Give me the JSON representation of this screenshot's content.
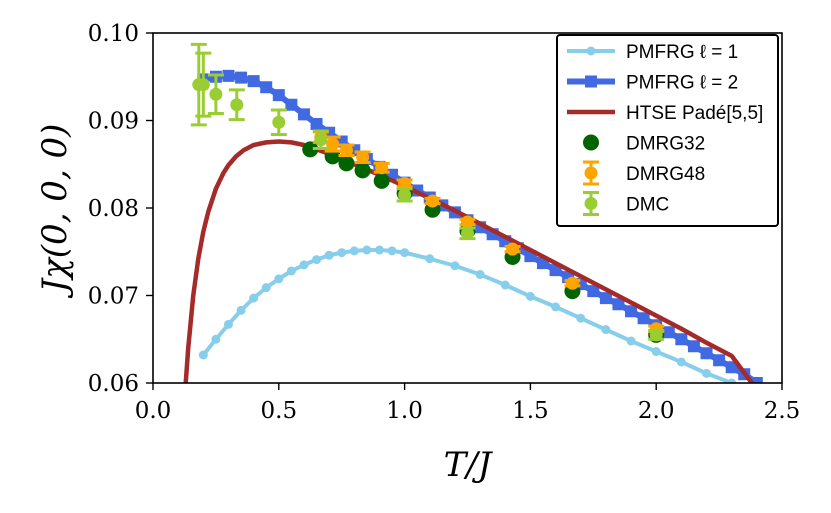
{
  "chart_data": {
    "type": "line",
    "title": "",
    "xlabel": "T/J",
    "ylabel": "Jχ(0, 0, 0)",
    "xlim": [
      0.0,
      2.5
    ],
    "ylim": [
      0.06,
      0.1
    ],
    "xticks": [
      "0.0",
      "0.5",
      "1.0",
      "1.5",
      "2.0",
      "2.5"
    ],
    "xtick_values": [
      0.0,
      0.5,
      1.0,
      1.5,
      2.0,
      2.5
    ],
    "yticks": [
      "0.06",
      "0.07",
      "0.08",
      "0.09",
      "0.10"
    ],
    "ytick_values": [
      0.06,
      0.07,
      0.08,
      0.09,
      0.1
    ],
    "grid": false,
    "legend_position": "top-right",
    "series": [
      {
        "name": "PMFRG ℓ = 1",
        "legend_label": "PMFRG ℓ = 1",
        "style": "line-circle",
        "color": "#87ceeb",
        "x": [
          0.2,
          0.25,
          0.3,
          0.35,
          0.4,
          0.45,
          0.5,
          0.55,
          0.6,
          0.65,
          0.7,
          0.75,
          0.8,
          0.85,
          0.9,
          0.95,
          1.0,
          1.1,
          1.2,
          1.3,
          1.4,
          1.5,
          1.6,
          1.7,
          1.8,
          1.9,
          2.0,
          2.1,
          2.2,
          2.3
        ],
        "y": [
          0.0632,
          0.065,
          0.0667,
          0.0683,
          0.0697,
          0.0709,
          0.0719,
          0.0728,
          0.0735,
          0.0741,
          0.0746,
          0.0749,
          0.0751,
          0.0752,
          0.0752,
          0.0751,
          0.0749,
          0.0742,
          0.0734,
          0.0724,
          0.0712,
          0.0699,
          0.0687,
          0.0674,
          0.0661,
          0.0648,
          0.0636,
          0.0624,
          0.0611,
          0.06
        ]
      },
      {
        "name": "PMFRG ℓ = 2",
        "legend_label": "PMFRG ℓ = 2",
        "style": "line-square",
        "color": "#4169e1",
        "x": [
          0.2,
          0.25,
          0.3,
          0.35,
          0.4,
          0.45,
          0.5,
          0.55,
          0.6,
          0.65,
          0.7,
          0.75,
          0.8,
          0.85,
          0.9,
          0.95,
          1.0,
          1.05,
          1.1,
          1.15,
          1.2,
          1.25,
          1.3,
          1.35,
          1.4,
          1.45,
          1.5,
          1.55,
          1.6,
          1.65,
          1.7,
          1.75,
          1.8,
          1.85,
          1.9,
          1.95,
          2.0,
          2.05,
          2.1,
          2.15,
          2.2,
          2.25,
          2.3,
          2.35,
          2.4
        ],
        "y": [
          0.0947,
          0.095,
          0.0951,
          0.0949,
          0.0945,
          0.0938,
          0.0929,
          0.0918,
          0.0907,
          0.0896,
          0.0886,
          0.0876,
          0.0866,
          0.0856,
          0.0847,
          0.0838,
          0.0829,
          0.082,
          0.0812,
          0.0803,
          0.0795,
          0.0786,
          0.0778,
          0.077,
          0.0762,
          0.0754,
          0.0745,
          0.0737,
          0.0729,
          0.0721,
          0.0713,
          0.0705,
          0.0697,
          0.069,
          0.0682,
          0.0674,
          0.0666,
          0.0658,
          0.065,
          0.0642,
          0.0634,
          0.0626,
          0.0618,
          0.061,
          0.06
        ]
      },
      {
        "name": "HTSE Padé[5,5]",
        "legend_label": "HTSE Padé[5,5]",
        "style": "line",
        "color": "#a52a2a",
        "x": [
          0.13,
          0.14,
          0.15,
          0.16,
          0.18,
          0.2,
          0.22,
          0.25,
          0.28,
          0.3,
          0.33,
          0.36,
          0.4,
          0.45,
          0.5,
          0.55,
          0.6,
          0.65,
          0.7,
          0.8,
          0.9,
          1.0,
          1.1,
          1.2,
          1.3,
          1.4,
          1.5,
          1.6,
          1.7,
          1.8,
          1.9,
          2.0,
          2.1,
          2.2,
          2.3,
          2.38
        ],
        "y": [
          0.06,
          0.064,
          0.067,
          0.07,
          0.0742,
          0.0773,
          0.0796,
          0.0822,
          0.084,
          0.0849,
          0.0859,
          0.0866,
          0.0872,
          0.0875,
          0.0876,
          0.0875,
          0.0872,
          0.0867,
          0.0862,
          0.085,
          0.0838,
          0.0825,
          0.0811,
          0.0797,
          0.0782,
          0.0767,
          0.0752,
          0.0737,
          0.0722,
          0.0707,
          0.0692,
          0.0677,
          0.0662,
          0.0646,
          0.0631,
          0.06
        ]
      },
      {
        "name": "DMRG32",
        "legend_label": "DMRG32",
        "style": "scatter-circle",
        "color": "#006400",
        "x": [
          0.625,
          0.714,
          0.769,
          0.833,
          0.909,
          1.0,
          1.111,
          1.25,
          1.429,
          1.667,
          2.0
        ],
        "y": [
          0.0867,
          0.0859,
          0.0851,
          0.0843,
          0.0831,
          0.0817,
          0.0798,
          0.0774,
          0.0744,
          0.0705,
          0.0655
        ]
      },
      {
        "name": "DMRG48",
        "legend_label": "DMRG48",
        "style": "errorbar",
        "color": "#ffa500",
        "x": [
          0.667,
          0.714,
          0.769,
          0.833,
          0.909,
          1.0,
          1.111,
          1.25,
          1.429,
          1.667,
          2.0
        ],
        "y": [
          0.0881,
          0.0873,
          0.0866,
          0.0858,
          0.0846,
          0.0828,
          0.0808,
          0.0784,
          0.0753,
          0.0714,
          0.0662
        ],
        "err": [
          0.0006,
          0.0008,
          0.0006,
          0.0006,
          0.0005,
          0.0004,
          0.0003,
          0.0003,
          0.0003,
          0.0003,
          0.0003
        ]
      },
      {
        "name": "DMC",
        "legend_label": "DMC",
        "style": "errorbar",
        "color": "#9acd32",
        "x": [
          0.182,
          0.2,
          0.25,
          0.333,
          0.5,
          0.667,
          1.0,
          1.25,
          2.0
        ],
        "y": [
          0.0941,
          0.0941,
          0.093,
          0.0918,
          0.0898,
          0.0878,
          0.0815,
          0.0771,
          0.0655
        ],
        "err": [
          0.0046,
          0.0036,
          0.0022,
          0.0017,
          0.0014,
          0.001,
          0.0007,
          0.0006,
          0.0005
        ]
      }
    ]
  }
}
